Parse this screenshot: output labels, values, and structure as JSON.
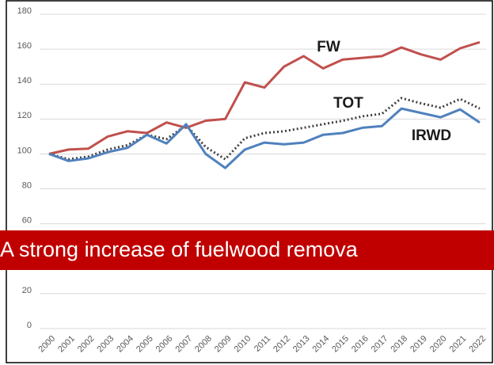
{
  "chart_data": {
    "type": "line",
    "annotation": "A strong increase of fuelwood remova",
    "categories": [
      "2000",
      "2001",
      "2002",
      "2003",
      "2004",
      "2005",
      "2006",
      "2007",
      "2008",
      "2009",
      "2010",
      "2011",
      "2012",
      "2013",
      "2014",
      "2015",
      "2016",
      "2017",
      "2018",
      "2019",
      "2020",
      "2021",
      "2022"
    ],
    "series": [
      {
        "name": "FW",
        "color": "#c0504d",
        "dash": false,
        "values": [
          100,
          102.5,
          103,
          110,
          113,
          112,
          118,
          115,
          119,
          120,
          141,
          138,
          150,
          156,
          149,
          154,
          155,
          156,
          161,
          157,
          154,
          160.5,
          164
        ]
      },
      {
        "name": "TOT",
        "color": "#404040",
        "dash": true,
        "values": [
          100,
          97,
          98.5,
          102.5,
          105,
          111,
          108.5,
          116.5,
          104,
          97,
          109,
          112,
          113,
          115,
          117,
          119,
          121.5,
          123,
          132,
          129,
          126.5,
          131.5,
          126
        ]
      },
      {
        "name": "IRWD",
        "color": "#4f81bd",
        "dash": false,
        "values": [
          100,
          96,
          97.5,
          101,
          103.5,
          111,
          106,
          117,
          100,
          92,
          102.5,
          106.5,
          105.5,
          106.5,
          111,
          112,
          115,
          116,
          126,
          123.5,
          121,
          125.5,
          118
        ]
      }
    ],
    "ylim": [
      0,
      180
    ],
    "yticks": [
      0,
      20,
      40,
      60,
      80,
      100,
      120,
      140,
      160,
      180
    ],
    "grid": true
  }
}
